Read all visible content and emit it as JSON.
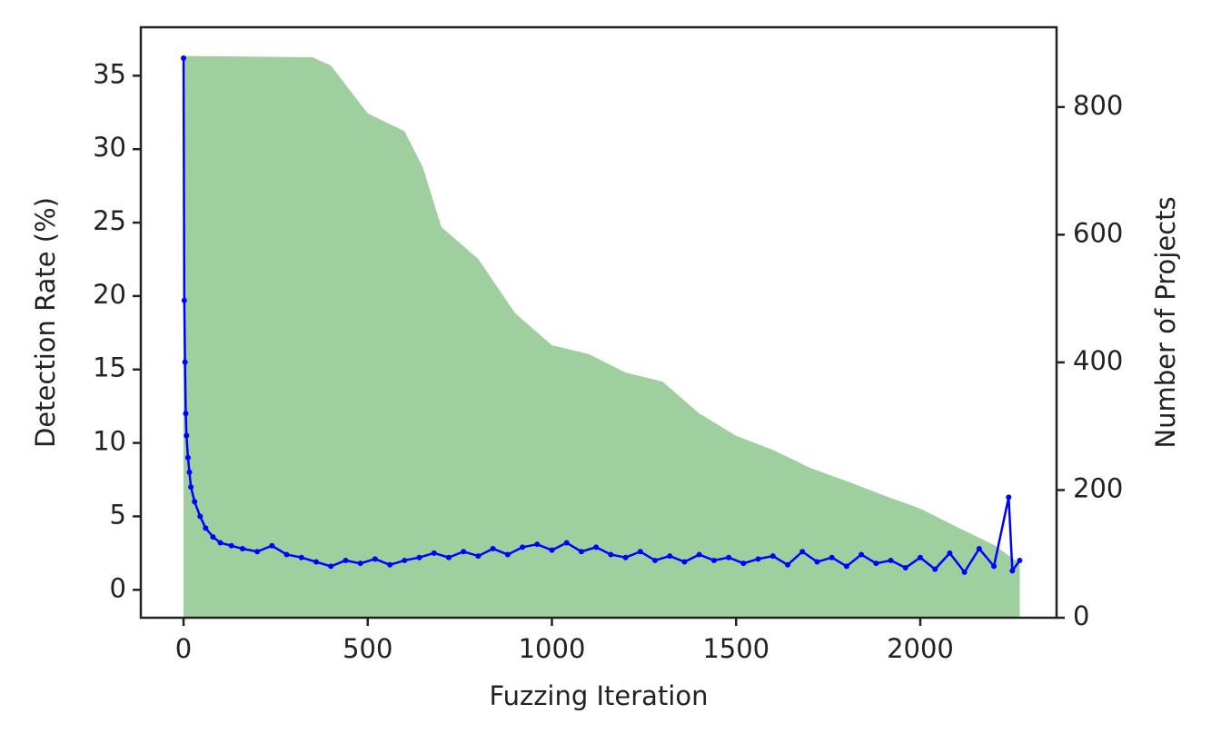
{
  "chart_data": {
    "type": "combo",
    "xlabel": "Fuzzing Iteration",
    "ylabel": "Detection Rate (%)",
    "y2label": "Number of Projects",
    "xlim": [
      -116,
      2370
    ],
    "xticks": [
      0,
      500,
      1000,
      1500,
      2000
    ],
    "ylim": [
      -1.9,
      38.3
    ],
    "yticks": [
      0,
      5,
      10,
      15,
      20,
      25,
      30,
      35
    ],
    "y2lim": [
      0,
      925
    ],
    "y2ticks": [
      0,
      200,
      400,
      600,
      800
    ],
    "series": [
      {
        "type": "area",
        "axis": "y2",
        "color": "#9fce9f",
        "x": [
          0,
          350,
          400,
          500,
          600,
          650,
          700,
          800,
          900,
          1000,
          1100,
          1200,
          1300,
          1400,
          1500,
          1600,
          1700,
          1800,
          1900,
          2000,
          2100,
          2200,
          2270
        ],
        "values": [
          880,
          878,
          865,
          790,
          762,
          705,
          612,
          562,
          477,
          427,
          413,
          384,
          370,
          320,
          285,
          263,
          235,
          214,
          192,
          171,
          142,
          114,
          85
        ]
      },
      {
        "type": "line",
        "color": "#0000ff",
        "x": [
          0,
          2,
          4,
          6,
          8,
          12,
          16,
          20,
          30,
          45,
          60,
          80,
          100,
          130,
          160,
          200,
          240,
          280,
          320,
          360,
          400,
          440,
          480,
          520,
          560,
          600,
          640,
          680,
          720,
          760,
          800,
          840,
          880,
          920,
          960,
          1000,
          1040,
          1080,
          1120,
          1160,
          1200,
          1240,
          1280,
          1320,
          1360,
          1400,
          1440,
          1480,
          1520,
          1560,
          1600,
          1640,
          1680,
          1720,
          1760,
          1800,
          1840,
          1880,
          1920,
          1960,
          2000,
          2040,
          2080,
          2120,
          2160,
          2200,
          2240,
          2250,
          2270
        ],
        "values": [
          36.2,
          19.7,
          15.5,
          12,
          10.5,
          9,
          8,
          7,
          6,
          5,
          4.2,
          3.6,
          3.2,
          3.0,
          2.8,
          2.6,
          3.0,
          2.4,
          2.2,
          1.9,
          1.6,
          2.0,
          1.8,
          2.1,
          1.7,
          2.0,
          2.2,
          2.5,
          2.2,
          2.6,
          2.3,
          2.8,
          2.4,
          2.9,
          3.1,
          2.7,
          3.2,
          2.6,
          2.9,
          2.4,
          2.2,
          2.6,
          2.0,
          2.3,
          1.9,
          2.4,
          2.0,
          2.2,
          1.8,
          2.1,
          2.3,
          1.7,
          2.6,
          1.9,
          2.2,
          1.6,
          2.4,
          1.8,
          2.0,
          1.5,
          2.2,
          1.4,
          2.5,
          1.2,
          2.8,
          1.6,
          6.3,
          1.3,
          2.0
        ]
      }
    ]
  }
}
